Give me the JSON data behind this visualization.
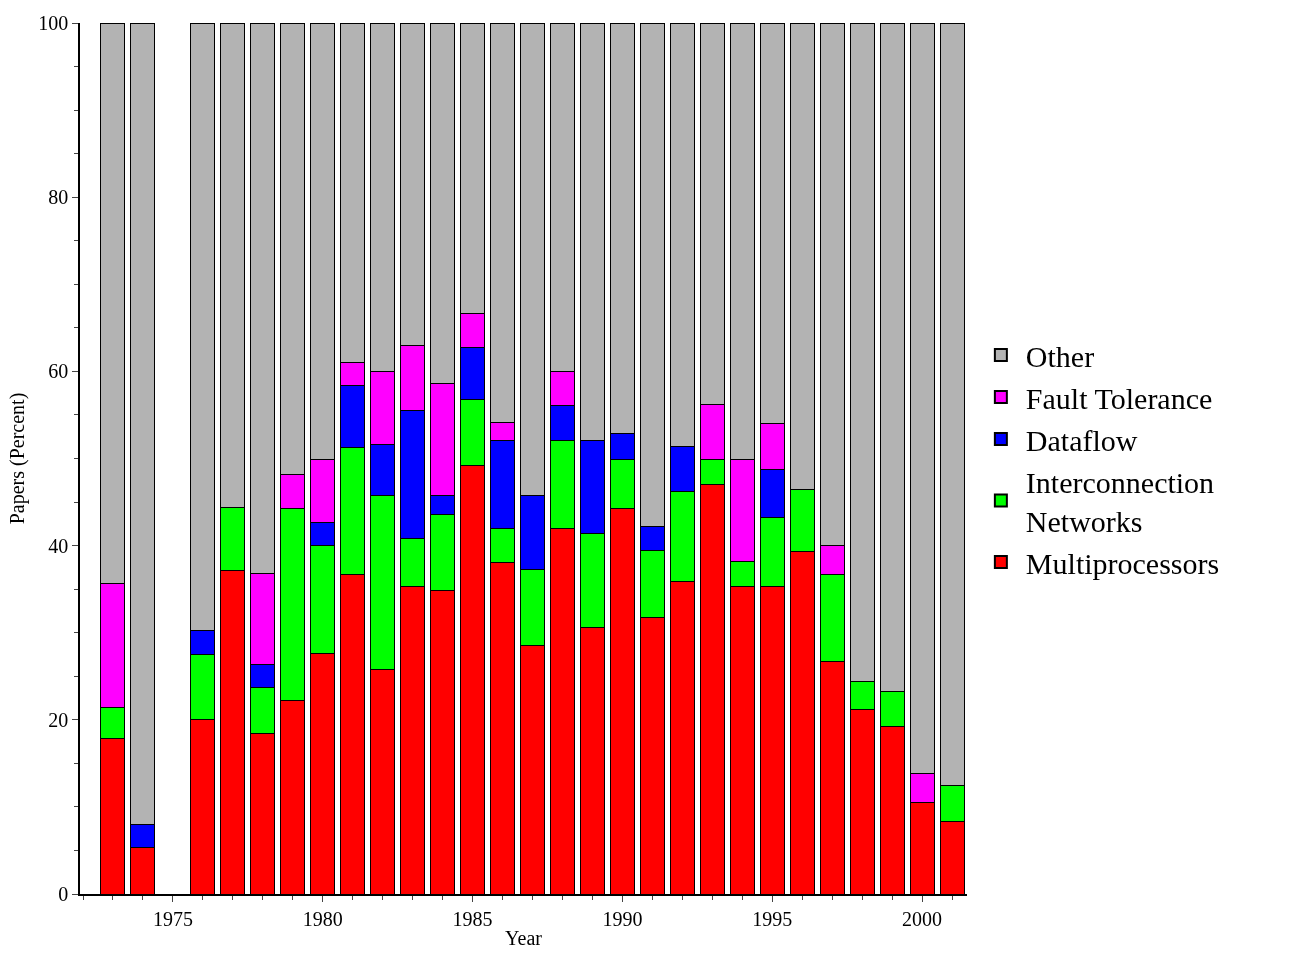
{
  "chart_data": {
    "type": "bar",
    "stacked": true,
    "xlabel": "Year",
    "ylabel": "Papers (Percent)",
    "x": [
      1973,
      1974,
      1976,
      1977,
      1978,
      1979,
      1980,
      1981,
      1982,
      1983,
      1984,
      1985,
      1986,
      1987,
      1988,
      1989,
      1990,
      1991,
      1992,
      1993,
      1994,
      1995,
      1996,
      1997,
      1998,
      1999,
      2000,
      2001
    ],
    "series": [
      {
        "name": "Multiprocessors",
        "color": "#ff0000",
        "values": [
          17.8,
          5.3,
          20,
          37.1,
          18.4,
          22.2,
          27.6,
          36.7,
          25.8,
          35.3,
          34.9,
          49.2,
          38.1,
          28.5,
          42,
          30.6,
          44.3,
          31.8,
          35.9,
          47,
          35.3,
          35.3,
          39.3,
          26.7,
          21.2,
          19.2,
          10.5,
          8.3
        ]
      },
      {
        "name": "Interconnection\nNetworks",
        "color": "#00ff00",
        "values": [
          3.6,
          null,
          7.5,
          7.3,
          5.3,
          22.1,
          12.4,
          14.6,
          20,
          5.5,
          8.7,
          7.6,
          3.9,
          8.7,
          10.1,
          10.8,
          5.6,
          7.6,
          10.3,
          2.9,
          2.9,
          7.9,
          7.1,
          10,
          3.2,
          4,
          null,
          4.2
        ]
      },
      {
        "name": "Dataflow",
        "color": "#0000ff",
        "values": [
          null,
          2.7,
          2.7,
          null,
          2.7,
          null,
          2.6,
          7.1,
          5.8,
          14.7,
          2.2,
          6,
          10.1,
          8.6,
          4,
          10.7,
          3,
          2.8,
          5.2,
          null,
          null,
          5.5,
          null,
          null,
          null,
          null,
          null,
          null
        ]
      },
      {
        "name": "Fault Tolerance",
        "color": "#ff00ff",
        "values": [
          14.3,
          null,
          null,
          null,
          10.4,
          3.9,
          7.3,
          2.6,
          8.4,
          7.5,
          12.8,
          3.8,
          2,
          null,
          3.9,
          null,
          null,
          null,
          null,
          6.3,
          11.7,
          5.3,
          null,
          3.3,
          null,
          null,
          3.3,
          null
        ]
      },
      {
        "name": "Other",
        "color": "#b3b3b3",
        "values": [
          64.3,
          92.0,
          69.8,
          55.6,
          63.2,
          51.8,
          50.1,
          39.0,
          40,
          37,
          41.4,
          33.4,
          45.9,
          54.2,
          40,
          47.9,
          47.1,
          57.8,
          48.6,
          43.8,
          50.1,
          46,
          53.6,
          60,
          75.6,
          76.8,
          86.2,
          87.5
        ]
      }
    ],
    "xlim": [
      1971.9,
      2001.5
    ],
    "xticks": [
      1975,
      1980,
      1985,
      1990,
      1995,
      2000
    ],
    "ylim": [
      0,
      100
    ],
    "yticks": [
      0,
      20,
      40,
      60,
      80,
      100
    ],
    "legend": "right"
  }
}
